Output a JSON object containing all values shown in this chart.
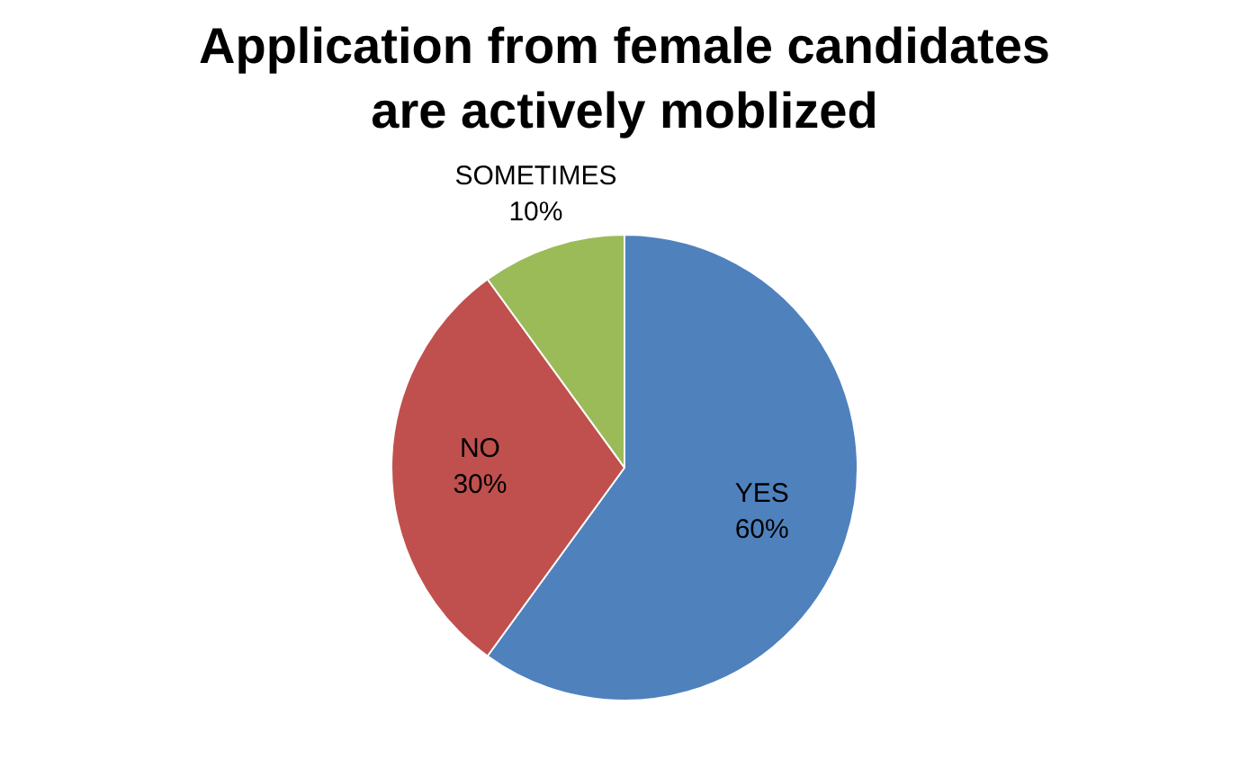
{
  "chart_data": {
    "type": "pie",
    "title": "Application from female candidates are actively moblized",
    "categories": [
      "YES",
      "NO",
      "SOMETIMES"
    ],
    "values": [
      60,
      30,
      10
    ],
    "colors": [
      "#4f81bd",
      "#c0504d",
      "#9bbb59"
    ],
    "value_labels": [
      "60%",
      "30%",
      "10%"
    ],
    "legend": false
  }
}
